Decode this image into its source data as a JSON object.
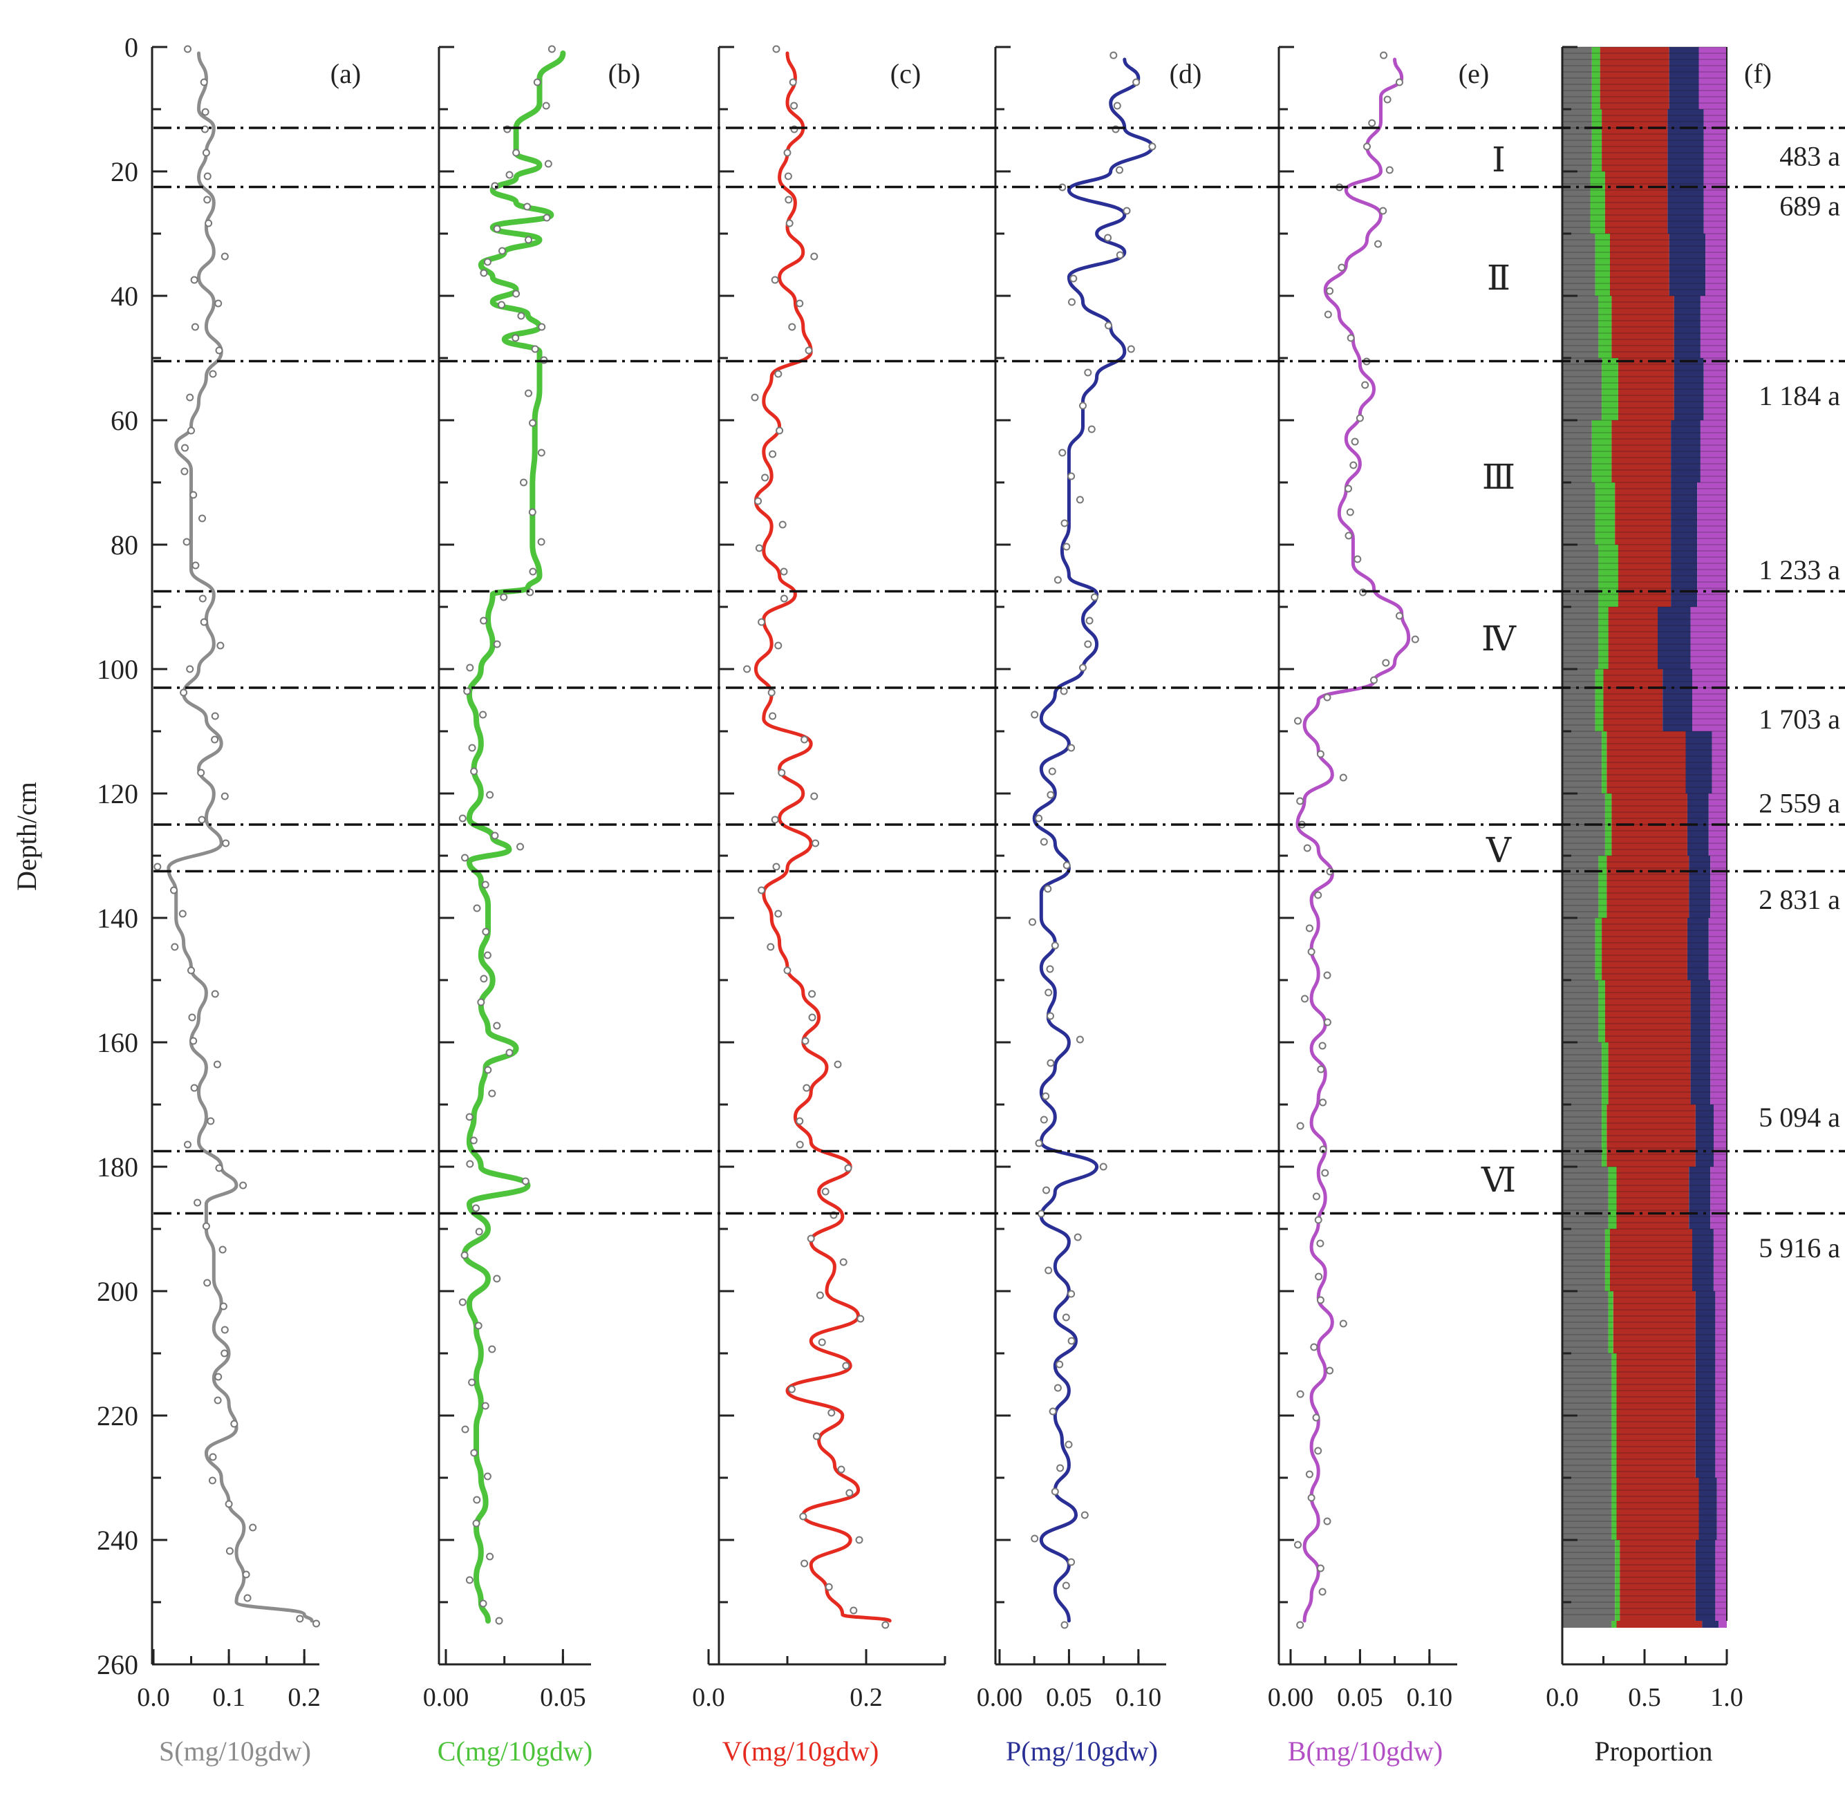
{
  "chart_data": {
    "type": "line",
    "y_axis": {
      "label": "Depth/cm",
      "range": [
        0,
        260
      ],
      "inverted": true,
      "ticks": [
        "0",
        "20",
        "40",
        "60",
        "80",
        "100",
        "120",
        "140",
        "160",
        "180",
        "200",
        "220",
        "240",
        "260"
      ]
    },
    "zone_boundaries_cm": [
      13,
      22.5,
      50.5,
      87.5,
      103,
      125,
      132.5,
      177.5,
      187.5
    ],
    "zone_labels": [
      {
        "label": "Ⅰ",
        "depth": 18
      },
      {
        "label": "Ⅱ",
        "depth": 37
      },
      {
        "label": "Ⅲ",
        "depth": 69
      },
      {
        "label": "Ⅳ",
        "depth": 95
      },
      {
        "label": "Ⅴ",
        "depth": 129
      },
      {
        "label": "Ⅵ",
        "depth": 182
      }
    ],
    "ages": [
      {
        "label": "483 a",
        "depth": 17.5
      },
      {
        "label": "689 a",
        "depth": 25.5
      },
      {
        "label": "1 184 a",
        "depth": 56
      },
      {
        "label": "1 233 a",
        "depth": 84
      },
      {
        "label": "1 703 a",
        "depth": 108
      },
      {
        "label": "2 559 a",
        "depth": 121.5
      },
      {
        "label": "2 831 a",
        "depth": 137
      },
      {
        "label": "5 094 a",
        "depth": 172
      },
      {
        "label": "5 916 a",
        "depth": 193
      }
    ],
    "panels": [
      {
        "tag": "(a)",
        "xlabel": "S(mg/10gdw)",
        "color": "#8c8c8c",
        "xlim": [
          0,
          0.22
        ],
        "xticks": [
          0,
          0.1,
          0.2
        ],
        "xtick_labels": [
          "0.0",
          "0.1",
          "0.2"
        ],
        "depth": [
          1,
          5,
          10,
          13,
          17,
          21,
          25,
          29,
          33,
          37,
          41,
          45,
          49,
          53,
          57,
          61,
          64,
          68,
          72,
          76,
          80,
          84,
          88,
          92,
          96,
          100,
          104,
          108,
          112,
          116,
          120,
          124,
          128,
          132,
          136,
          140,
          144,
          148,
          152,
          156,
          160,
          164,
          168,
          172,
          176,
          180,
          183,
          186,
          190,
          194,
          198,
          202,
          206,
          210,
          214,
          218,
          222,
          226,
          230,
          234,
          238,
          242,
          246,
          250,
          252,
          253
        ],
        "values": [
          0.06,
          0.07,
          0.06,
          0.08,
          0.07,
          0.06,
          0.08,
          0.07,
          0.08,
          0.06,
          0.08,
          0.07,
          0.09,
          0.07,
          0.06,
          0.05,
          0.03,
          0.05,
          0.05,
          0.05,
          0.05,
          0.05,
          0.08,
          0.07,
          0.08,
          0.06,
          0.04,
          0.07,
          0.09,
          0.06,
          0.08,
          0.07,
          0.09,
          0.02,
          0.03,
          0.03,
          0.04,
          0.05,
          0.07,
          0.06,
          0.05,
          0.07,
          0.06,
          0.07,
          0.06,
          0.09,
          0.11,
          0.07,
          0.07,
          0.08,
          0.08,
          0.09,
          0.08,
          0.1,
          0.08,
          0.1,
          0.11,
          0.07,
          0.09,
          0.1,
          0.12,
          0.11,
          0.12,
          0.11,
          0.2,
          0.21
        ]
      },
      {
        "tag": "(b)",
        "xlabel": "C(mg/10gdw)",
        "color": "#4cc33a",
        "xlim": [
          0,
          0.062
        ],
        "xticks": [
          0,
          0.05
        ],
        "xtick_labels": [
          "0.00",
          "0.05"
        ],
        "depth": [
          1,
          5,
          9,
          13,
          17,
          19,
          21,
          23,
          25,
          27,
          29,
          31,
          33,
          35,
          37,
          39,
          41,
          43,
          45,
          47,
          49,
          51,
          55,
          60,
          65,
          70,
          75,
          80,
          85,
          87,
          88,
          92,
          96,
          100,
          104,
          108,
          112,
          116,
          120,
          124,
          127,
          129,
          131,
          134,
          138,
          142,
          146,
          150,
          154,
          158,
          161,
          164,
          168,
          172,
          176,
          180,
          183,
          186,
          190,
          194,
          198,
          202,
          206,
          210,
          214,
          218,
          222,
          226,
          230,
          234,
          238,
          242,
          246,
          250,
          253
        ],
        "values": [
          0.05,
          0.04,
          0.04,
          0.03,
          0.03,
          0.04,
          0.03,
          0.02,
          0.03,
          0.045,
          0.02,
          0.04,
          0.025,
          0.015,
          0.02,
          0.03,
          0.02,
          0.035,
          0.04,
          0.025,
          0.04,
          0.04,
          0.04,
          0.038,
          0.038,
          0.037,
          0.037,
          0.037,
          0.04,
          0.035,
          0.02,
          0.018,
          0.02,
          0.015,
          0.01,
          0.013,
          0.015,
          0.012,
          0.015,
          0.01,
          0.02,
          0.027,
          0.01,
          0.015,
          0.018,
          0.018,
          0.015,
          0.02,
          0.015,
          0.018,
          0.03,
          0.017,
          0.015,
          0.012,
          0.01,
          0.015,
          0.035,
          0.01,
          0.018,
          0.008,
          0.018,
          0.01,
          0.013,
          0.015,
          0.013,
          0.015,
          0.013,
          0.013,
          0.015,
          0.017,
          0.013,
          0.015,
          0.013,
          0.015,
          0.018
        ]
      },
      {
        "tag": "(c)",
        "xlabel": "V(mg/10gdw)",
        "color": "#e52a20",
        "xlim": [
          0,
          0.3
        ],
        "xticks": [
          0,
          0.2
        ],
        "xtick_labels": [
          "0.0",
          "0.2"
        ],
        "depth": [
          1,
          5,
          9,
          13,
          17,
          21,
          25,
          29,
          33,
          37,
          41,
          45,
          49,
          53,
          57,
          61,
          65,
          69,
          73,
          77,
          81,
          85,
          88,
          92,
          96,
          100,
          104,
          108,
          112,
          116,
          120,
          124,
          128,
          132,
          136,
          140,
          144,
          148,
          152,
          156,
          160,
          164,
          168,
          172,
          176,
          180,
          184,
          188,
          192,
          196,
          200,
          204,
          208,
          212,
          216,
          220,
          224,
          228,
          232,
          236,
          240,
          244,
          248,
          252,
          253
        ],
        "values": [
          0.1,
          0.11,
          0.1,
          0.12,
          0.1,
          0.09,
          0.11,
          0.1,
          0.12,
          0.09,
          0.11,
          0.12,
          0.13,
          0.08,
          0.07,
          0.09,
          0.07,
          0.08,
          0.06,
          0.08,
          0.07,
          0.09,
          0.11,
          0.07,
          0.08,
          0.06,
          0.08,
          0.07,
          0.13,
          0.09,
          0.12,
          0.09,
          0.13,
          0.1,
          0.07,
          0.08,
          0.09,
          0.1,
          0.12,
          0.14,
          0.12,
          0.15,
          0.13,
          0.11,
          0.13,
          0.18,
          0.14,
          0.17,
          0.13,
          0.16,
          0.15,
          0.19,
          0.13,
          0.18,
          0.1,
          0.17,
          0.14,
          0.16,
          0.19,
          0.12,
          0.18,
          0.13,
          0.15,
          0.17,
          0.23
        ]
      },
      {
        "tag": "(d)",
        "xlabel": "P(mg/10gdw)",
        "color": "#2a2f96",
        "xlim": [
          0,
          0.12
        ],
        "xticks": [
          0,
          0.05,
          0.1
        ],
        "xtick_labels": [
          "0.00",
          "0.05",
          "0.10"
        ],
        "depth": [
          2,
          5,
          9,
          13,
          16,
          20,
          23,
          27,
          30,
          33,
          37,
          41,
          45,
          49,
          53,
          57,
          61,
          65,
          69,
          73,
          77,
          81,
          85,
          88,
          92,
          96,
          100,
          104,
          108,
          112,
          116,
          120,
          124,
          128,
          132,
          136,
          140,
          144,
          148,
          152,
          156,
          160,
          164,
          168,
          172,
          176,
          180,
          184,
          188,
          192,
          196,
          200,
          204,
          208,
          212,
          216,
          220,
          224,
          228,
          232,
          236,
          240,
          244,
          248,
          253
        ],
        "values": [
          0.09,
          0.1,
          0.08,
          0.09,
          0.11,
          0.08,
          0.05,
          0.09,
          0.07,
          0.09,
          0.05,
          0.06,
          0.08,
          0.09,
          0.07,
          0.06,
          0.06,
          0.05,
          0.05,
          0.05,
          0.05,
          0.045,
          0.05,
          0.07,
          0.06,
          0.07,
          0.06,
          0.04,
          0.03,
          0.05,
          0.03,
          0.04,
          0.025,
          0.04,
          0.05,
          0.03,
          0.03,
          0.04,
          0.03,
          0.04,
          0.035,
          0.05,
          0.04,
          0.03,
          0.04,
          0.03,
          0.07,
          0.04,
          0.03,
          0.05,
          0.04,
          0.05,
          0.04,
          0.055,
          0.04,
          0.05,
          0.04,
          0.045,
          0.05,
          0.04,
          0.055,
          0.03,
          0.05,
          0.04,
          0.05
        ]
      },
      {
        "tag": "(e)",
        "xlabel": "B(mg/10gdw)",
        "color": "#b24fc4",
        "xlim": [
          0,
          0.12
        ],
        "xticks": [
          0,
          0.05,
          0.1
        ],
        "xtick_labels": [
          "0.00",
          "0.05",
          "0.10"
        ],
        "depth": [
          2,
          5,
          8,
          12,
          16,
          20,
          23,
          27,
          31,
          35,
          39,
          43,
          47,
          51,
          55,
          59,
          63,
          67,
          71,
          75,
          79,
          83,
          87,
          91,
          95,
          99,
          102,
          105,
          109,
          113,
          117,
          121,
          125,
          129,
          133,
          137,
          141,
          145,
          149,
          153,
          157,
          161,
          165,
          169,
          173,
          177,
          181,
          185,
          189,
          193,
          197,
          201,
          205,
          209,
          213,
          217,
          221,
          225,
          229,
          233,
          237,
          241,
          245,
          249,
          253
        ],
        "values": [
          0.075,
          0.08,
          0.065,
          0.065,
          0.055,
          0.065,
          0.04,
          0.065,
          0.055,
          0.04,
          0.025,
          0.035,
          0.045,
          0.05,
          0.06,
          0.05,
          0.04,
          0.05,
          0.04,
          0.035,
          0.045,
          0.045,
          0.06,
          0.08,
          0.085,
          0.075,
          0.06,
          0.02,
          0.01,
          0.02,
          0.03,
          0.01,
          0.005,
          0.02,
          0.03,
          0.015,
          0.02,
          0.015,
          0.02,
          0.015,
          0.025,
          0.015,
          0.025,
          0.02,
          0.015,
          0.025,
          0.02,
          0.025,
          0.02,
          0.015,
          0.025,
          0.02,
          0.03,
          0.02,
          0.025,
          0.015,
          0.02,
          0.015,
          0.02,
          0.015,
          0.02,
          0.01,
          0.02,
          0.015,
          0.01
        ]
      }
    ],
    "proportion_panel": {
      "tag": "(f)",
      "xlabel": "Proportion",
      "type": "stacked-bar",
      "xlim": [
        0,
        1
      ],
      "xticks": [
        0,
        0.5,
        1.0
      ],
      "xtick_labels": [
        "0.0",
        "0.5",
        "1.0"
      ],
      "series": [
        "S",
        "C",
        "V",
        "P",
        "B"
      ],
      "colors": [
        "#6f6f6f",
        "#4cc33a",
        "#b32b22",
        "#2a2f6e",
        "#b24fc4"
      ],
      "depth": [
        0,
        10,
        20,
        30,
        40,
        50,
        60,
        70,
        80,
        90,
        100,
        110,
        120,
        130,
        140,
        150,
        160,
        170,
        180,
        190,
        200,
        210,
        220,
        230,
        240,
        253
      ],
      "fractions": [
        [
          0.18,
          0.05,
          0.42,
          0.18,
          0.17
        ],
        [
          0.18,
          0.06,
          0.4,
          0.22,
          0.14
        ],
        [
          0.17,
          0.09,
          0.38,
          0.22,
          0.14
        ],
        [
          0.2,
          0.09,
          0.36,
          0.22,
          0.13
        ],
        [
          0.22,
          0.08,
          0.38,
          0.16,
          0.16
        ],
        [
          0.24,
          0.1,
          0.34,
          0.18,
          0.14
        ],
        [
          0.18,
          0.12,
          0.36,
          0.18,
          0.16
        ],
        [
          0.2,
          0.12,
          0.34,
          0.16,
          0.18
        ],
        [
          0.22,
          0.12,
          0.32,
          0.16,
          0.18
        ],
        [
          0.22,
          0.06,
          0.3,
          0.2,
          0.22
        ],
        [
          0.2,
          0.05,
          0.36,
          0.18,
          0.21
        ],
        [
          0.24,
          0.03,
          0.48,
          0.16,
          0.09
        ],
        [
          0.26,
          0.04,
          0.46,
          0.13,
          0.11
        ],
        [
          0.22,
          0.05,
          0.5,
          0.13,
          0.1
        ],
        [
          0.2,
          0.04,
          0.52,
          0.13,
          0.11
        ],
        [
          0.22,
          0.04,
          0.52,
          0.12,
          0.1
        ],
        [
          0.24,
          0.04,
          0.5,
          0.12,
          0.1
        ],
        [
          0.24,
          0.03,
          0.54,
          0.11,
          0.08
        ],
        [
          0.28,
          0.05,
          0.44,
          0.13,
          0.1
        ],
        [
          0.26,
          0.03,
          0.5,
          0.13,
          0.08
        ],
        [
          0.28,
          0.03,
          0.5,
          0.12,
          0.07
        ],
        [
          0.3,
          0.03,
          0.48,
          0.12,
          0.07
        ],
        [
          0.3,
          0.03,
          0.48,
          0.12,
          0.07
        ],
        [
          0.3,
          0.03,
          0.5,
          0.11,
          0.06
        ],
        [
          0.32,
          0.03,
          0.46,
          0.12,
          0.07
        ],
        [
          0.3,
          0.03,
          0.52,
          0.1,
          0.05
        ]
      ]
    }
  }
}
